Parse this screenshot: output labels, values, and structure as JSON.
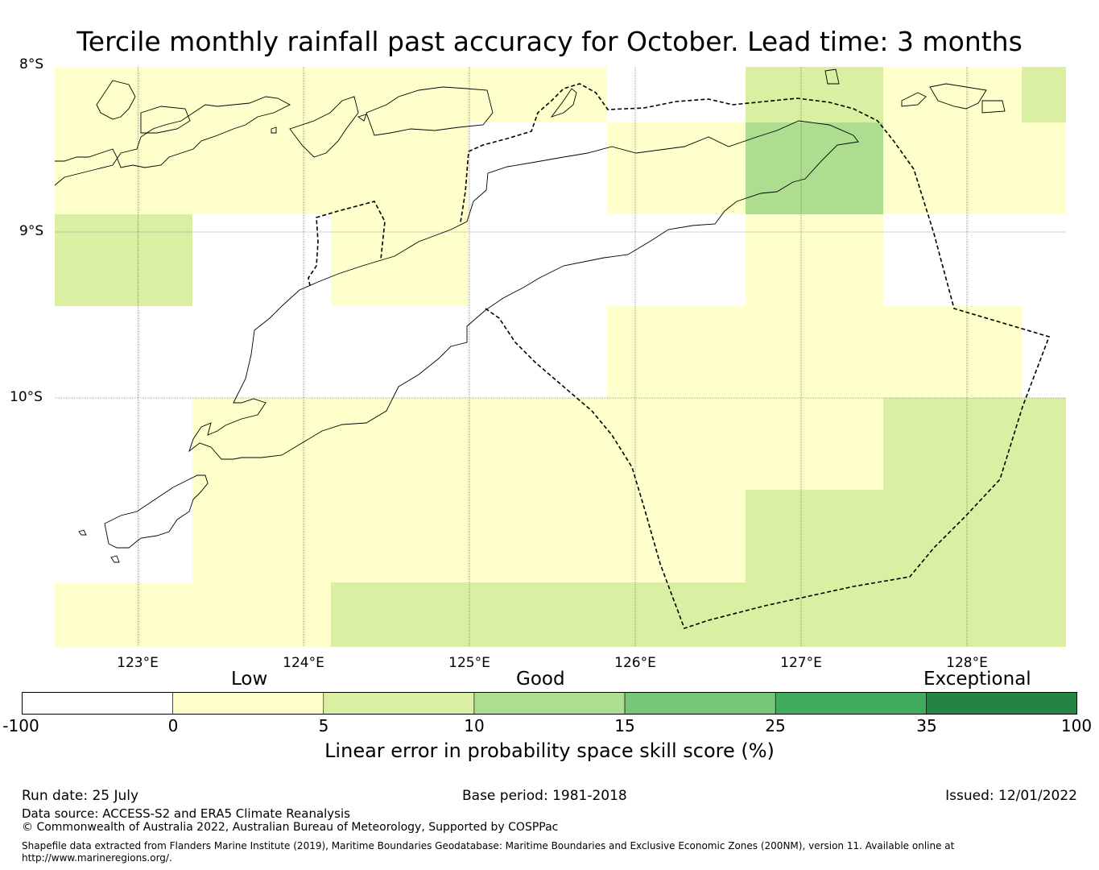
{
  "title": "Tercile monthly rainfall past accuracy for October. Lead time: 3 months",
  "map": {
    "lat_labels": [
      "8°S",
      "9°S",
      "10°S"
    ],
    "lon_labels": [
      "123°E",
      "124°E",
      "125°E",
      "126°E",
      "127°E",
      "128°E"
    ]
  },
  "colorbar": {
    "category_labels": [
      "Low",
      "Good",
      "Exceptional"
    ],
    "ticks": [
      "-100",
      "0",
      "5",
      "10",
      "15",
      "25",
      "35",
      "100"
    ],
    "colors": [
      "#ffffff",
      "#ffffcc",
      "#d9f0a3",
      "#addd8e",
      "#78c679",
      "#41ab5d",
      "#238443"
    ],
    "label": "Linear error in probability space skill score (%)"
  },
  "footer": {
    "run_date": "Run date: 25 July",
    "base_period": "Base period: 1981-2018",
    "issued": "Issued: 12/01/2022",
    "data_source": "Data source: ACCESS-S2 and ERA5 Climate Reanalysis",
    "copyright": "© Commonwealth of Australia 2022, Australian Bureau of Meteorology, Supported by COSPPac",
    "shapefile": "Shapefile data extracted from Flanders Marine Institute (2019), Maritime Boundaries Geodatabase: Maritime Boundaries and Exclusive Economic Zones (200NM), version 11. Available online at http://www.marineregions.org/."
  }
}
